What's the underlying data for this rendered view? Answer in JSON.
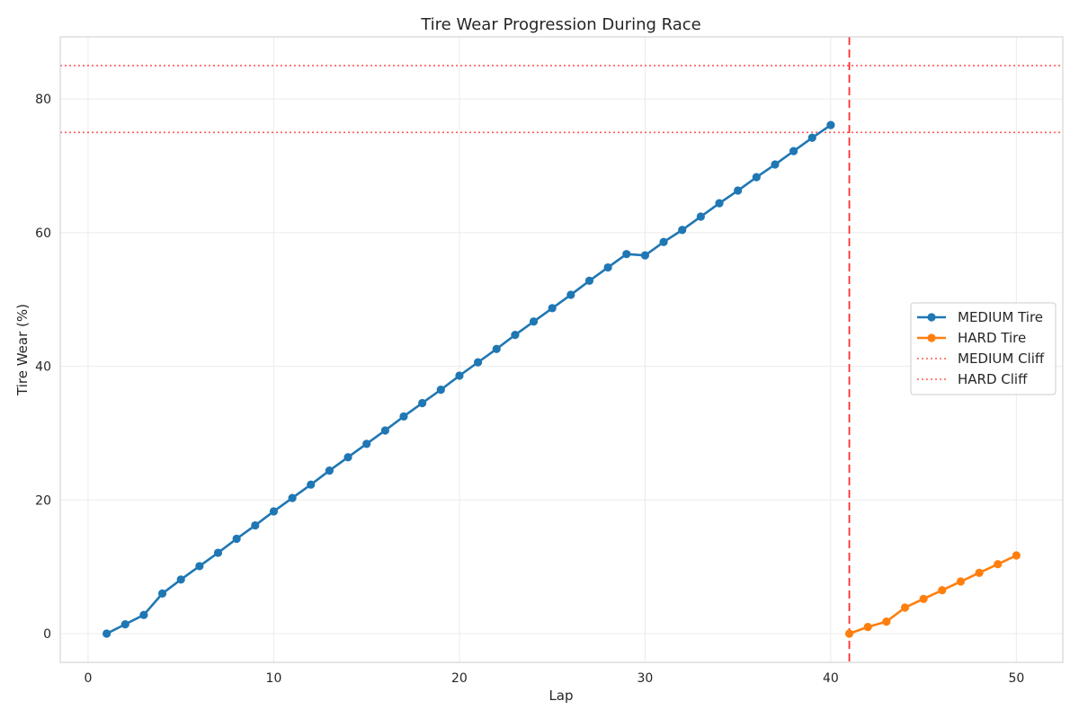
{
  "chart_data": {
    "type": "line",
    "title": "Tire Wear Progression During Race",
    "xlabel": "Lap",
    "ylabel": "Tire Wear (%)",
    "xlim": [
      -1.5,
      52.5
    ],
    "ylim": [
      -4.3,
      89.3
    ],
    "xticks": [
      0,
      10,
      20,
      30,
      40,
      50
    ],
    "yticks": [
      0,
      20,
      40,
      60,
      80
    ],
    "grid": true,
    "legend_position": "center-right",
    "series": [
      {
        "name": "MEDIUM Tire",
        "color": "#1f77b4",
        "style": "line-marker",
        "x": [
          1,
          2,
          3,
          4,
          5,
          6,
          7,
          8,
          9,
          10,
          11,
          12,
          13,
          14,
          15,
          16,
          17,
          18,
          19,
          20,
          21,
          22,
          23,
          24,
          25,
          26,
          27,
          28,
          29,
          30,
          31,
          32,
          33,
          34,
          35,
          36,
          37,
          38,
          39,
          40
        ],
        "values": [
          0,
          1.4,
          2.8,
          6.0,
          8.1,
          10.1,
          12.1,
          14.2,
          16.2,
          18.3,
          20.3,
          22.3,
          24.4,
          26.4,
          28.4,
          30.4,
          32.5,
          34.5,
          36.5,
          38.6,
          40.6,
          42.6,
          44.7,
          46.7,
          48.7,
          50.7,
          52.8,
          54.8,
          56.8,
          56.6,
          58.6,
          60.4,
          62.4,
          64.4,
          66.3,
          68.3,
          70.2,
          72.2,
          74.2,
          76.1
        ]
      },
      {
        "name": "HARD Tire",
        "color": "#ff7f0e",
        "style": "line-marker",
        "x": [
          41,
          42,
          43,
          44,
          45,
          46,
          47,
          48,
          49,
          50
        ],
        "values": [
          0,
          1.0,
          1.8,
          3.9,
          5.2,
          6.5,
          7.8,
          9.1,
          10.4,
          11.7
        ]
      }
    ],
    "reference_lines": [
      {
        "name": "MEDIUM Cliff",
        "orientation": "horizontal",
        "value": 75,
        "color": "#ff5a5a",
        "style": "dotted",
        "in_legend": true
      },
      {
        "name": "HARD Cliff",
        "orientation": "horizontal",
        "value": 85,
        "color": "#ff5a5a",
        "style": "dotted",
        "in_legend": true
      },
      {
        "name": "",
        "orientation": "vertical",
        "value": 41,
        "color": "#ff3030",
        "style": "dashed",
        "in_legend": false
      }
    ]
  }
}
